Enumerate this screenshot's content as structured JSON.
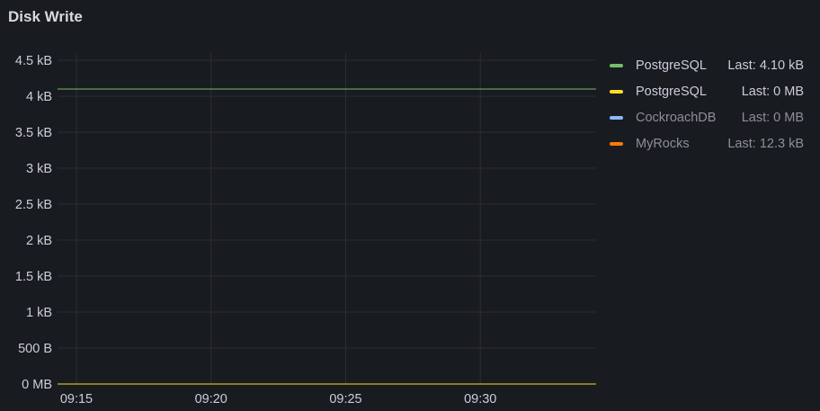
{
  "panel": {
    "title": "Disk Write"
  },
  "chart_data": {
    "type": "line",
    "title": "Disk Write",
    "xlabel": "",
    "ylabel": "",
    "x_ticks": [
      "09:15",
      "09:20",
      "09:25",
      "09:30"
    ],
    "x_tick_minutes": [
      15,
      20,
      25,
      30
    ],
    "xlim_minutes": [
      14.3,
      34.3
    ],
    "y_ticks": [
      "0 MB",
      "500 B",
      "1 kB",
      "1.5 kB",
      "2 kB",
      "2.5 kB",
      "3 kB",
      "3.5 kB",
      "4 kB",
      "4.5 kB"
    ],
    "y_tick_values": [
      0,
      500,
      1000,
      1500,
      2000,
      2500,
      3000,
      3500,
      4000,
      4500
    ],
    "ylim": [
      0,
      4500
    ],
    "grid": true,
    "legend_position": "right",
    "series": [
      {
        "name": "PostgreSQL",
        "color": "#73bf69",
        "x": [
          14.3,
          34.3
        ],
        "y": [
          4100,
          4100
        ],
        "last": "Last: 4.10 kB",
        "hidden": false
      },
      {
        "name": "PostgreSQL",
        "color": "#fade2a",
        "x": [
          14.3,
          34.3
        ],
        "y": [
          0,
          0
        ],
        "last": "Last: 0 MB",
        "hidden": false
      },
      {
        "name": "CockroachDB",
        "color": "#8ab8ff",
        "x": [],
        "y": [],
        "last": "Last: 0 MB",
        "hidden": true
      },
      {
        "name": "MyRocks",
        "color": "#ff780a",
        "x": [],
        "y": [],
        "last": "Last: 12.3 kB",
        "hidden": true
      }
    ]
  }
}
